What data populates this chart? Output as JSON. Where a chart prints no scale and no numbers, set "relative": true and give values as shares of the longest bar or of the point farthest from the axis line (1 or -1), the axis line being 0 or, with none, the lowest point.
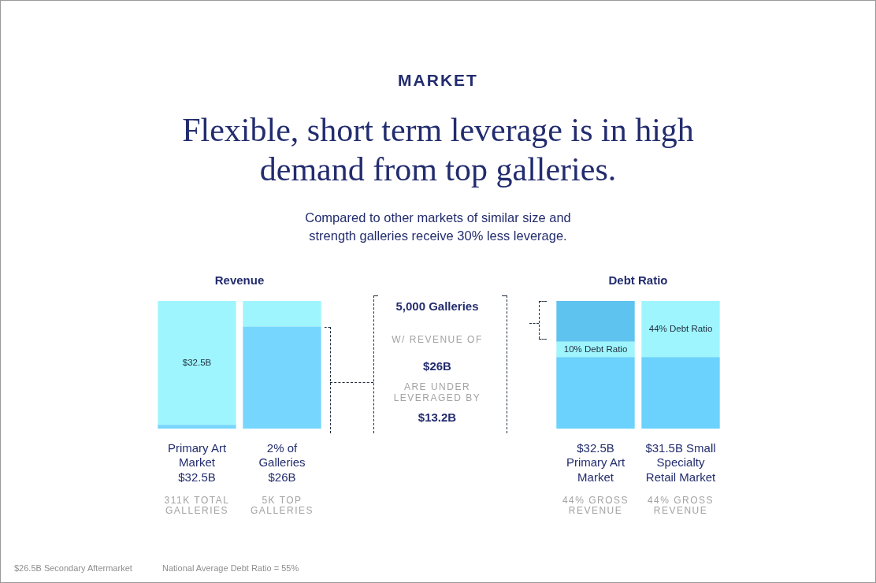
{
  "chart_data": [
    {
      "type": "other",
      "title": "Flexible, short term leverage is in high demand from top galleries.",
      "subtitle": "Compared to other markets of similar size and strength galleries receive 30% less leverage.",
      "annotations": [
        "MARKET",
        "5,000 Galleries",
        "W/ REVENUE OF",
        "$26B",
        "ARE UNDER LEVERAGED BY",
        "$13.2B",
        "$26.5B Secondary Aftermarket",
        "National Average Debt Ratio = 55%"
      ]
    },
    {
      "type": "bar",
      "title": "Revenue",
      "relative": true,
      "stacked": true,
      "categories": [
        "Primary Art Market $32.5B",
        "2% of Galleries $26B"
      ],
      "series": [
        {
          "color": "#76d6fd",
          "values": [
            0.03,
            0.8
          ]
        },
        {
          "color": "#9ff5fd",
          "values": [
            0.97,
            0.2
          ]
        }
      ],
      "annotations": [
        "311K TOTAL GALLERIES",
        "5K TOP GALLERIES",
        "$32.5B"
      ]
    },
    {
      "type": "bar",
      "title": "Debt Ratio",
      "relative": true,
      "stacked": true,
      "categories": [
        "$32.5B Primary Art Market",
        "$31.5B Small Specialty Retail Market"
      ],
      "series": [
        {
          "color": "#6ad2fc",
          "values": [
            0.56,
            0.56
          ]
        },
        {
          "color": "#9ff5fd",
          "values": [
            0.12,
            0.44
          ]
        },
        {
          "color": "#5ec3ef",
          "values": [
            0.32,
            null
          ]
        }
      ],
      "annotations": [
        "44% GROSS REVENUE",
        "44% GROSS REVENUE",
        "10% Debt Ratio",
        "44% Debt Ratio"
      ]
    }
  ]
}
